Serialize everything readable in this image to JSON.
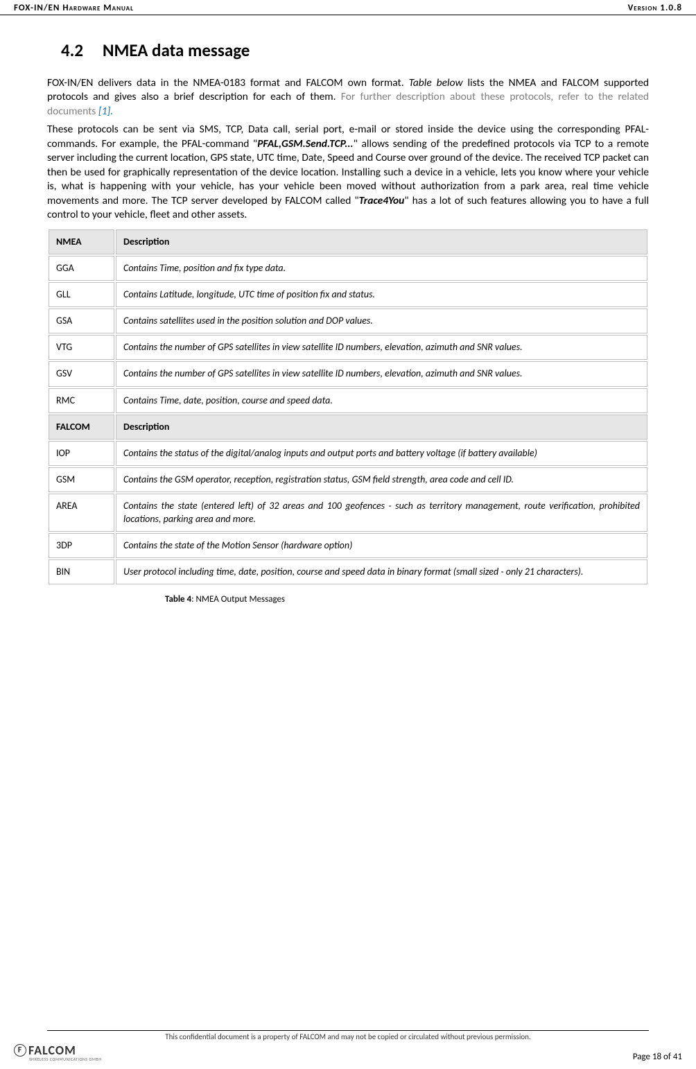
{
  "header": {
    "left": "FOX-IN/EN Hardware Manual",
    "right": "Version 1.0.8"
  },
  "section": {
    "number": "4.2",
    "title": "NMEA data message"
  },
  "para1": {
    "t1": "FOX-IN/EN delivers data in the NMEA-0183 format and FALCOM own format. ",
    "t2": "Table below",
    "t3": " lists the NMEA and FALCOM supported protocols and gives also a brief description for each of them. ",
    "t4": "For further description about these protocols, refer to the related documents ",
    "t5": "[1].",
    "t6": ""
  },
  "para2": {
    "t1": "These protocols can be sent via SMS, TCP, Data call, serial port, e-mail or stored inside the device using the corresponding PFAL-commands. For example, the PFAL-command \"",
    "t2": "PFAL,GSM.Send.TCP...",
    "t3": "\" allows sending of the predefined protocols via TCP to a remote server including the current location, GPS state, UTC time, Date, Speed and Course over ground of the device. The received TCP packet can then be used for graphically representation of the device location. Installing such a device in a vehicle, lets you know where your vehicle is, what is happening with your vehicle, has your vehicle been moved without authorization from a park area, real time vehicle movements and more. The TCP server developed by FALCOM called \"",
    "t4": "Trace4You",
    "t5": "\" has a lot of such features allowing you to have a full control to your vehicle, fleet and other assets."
  },
  "table": {
    "header1": {
      "c1": "NMEA",
      "c2": "Description"
    },
    "nmea": [
      {
        "code": "GGA",
        "desc": "Contains Time, position and fix type data."
      },
      {
        "code": "GLL",
        "desc": "Contains Latitude, longitude, UTC time of position fix and status."
      },
      {
        "code": "GSA",
        "desc": "Contains satellites used in the position solution and DOP values."
      },
      {
        "code": "VTG",
        "desc": "Contains the number of GPS satellites in view satellite ID numbers, elevation, azimuth and SNR values."
      },
      {
        "code": "GSV",
        "desc": "Contains the number of GPS satellites in view satellite ID numbers, elevation, azimuth and SNR values."
      },
      {
        "code": "RMC",
        "desc": "Contains Time, date, position, course and speed data."
      }
    ],
    "header2": {
      "c1": "FALCOM",
      "c2": "Description"
    },
    "falcom": [
      {
        "code": "IOP",
        "desc": "Contains the status of the digital/analog inputs and output ports and battery voltage (if battery available)"
      },
      {
        "code": "GSM",
        "desc": "Contains the GSM operator, reception, registration status, GSM field strength, area code and cell ID."
      },
      {
        "code": "AREA",
        "desc": "Contains the state (entered left) of 32 areas and 100 geofences - such as territory management, route verification, prohibited locations, parking area and more."
      },
      {
        "code": "3DP",
        "desc": "Contains the state of the Motion Sensor (hardware option)"
      },
      {
        "code": "BIN",
        "desc": "User protocol including time, date, position, course and speed data in binary format  (small sized - only 21 characters)."
      }
    ]
  },
  "caption": {
    "label": "Table 4",
    "text": ": NMEA Output Messages"
  },
  "footer": {
    "confidential": "This confidential document is a property of FALCOM and may not be copied or circulated without previous permission.",
    "logo_text": "FALCOM",
    "logo_sub": "WIRELESS COMMUNICATIONS GMBH",
    "page": "Page 18 of 41"
  }
}
